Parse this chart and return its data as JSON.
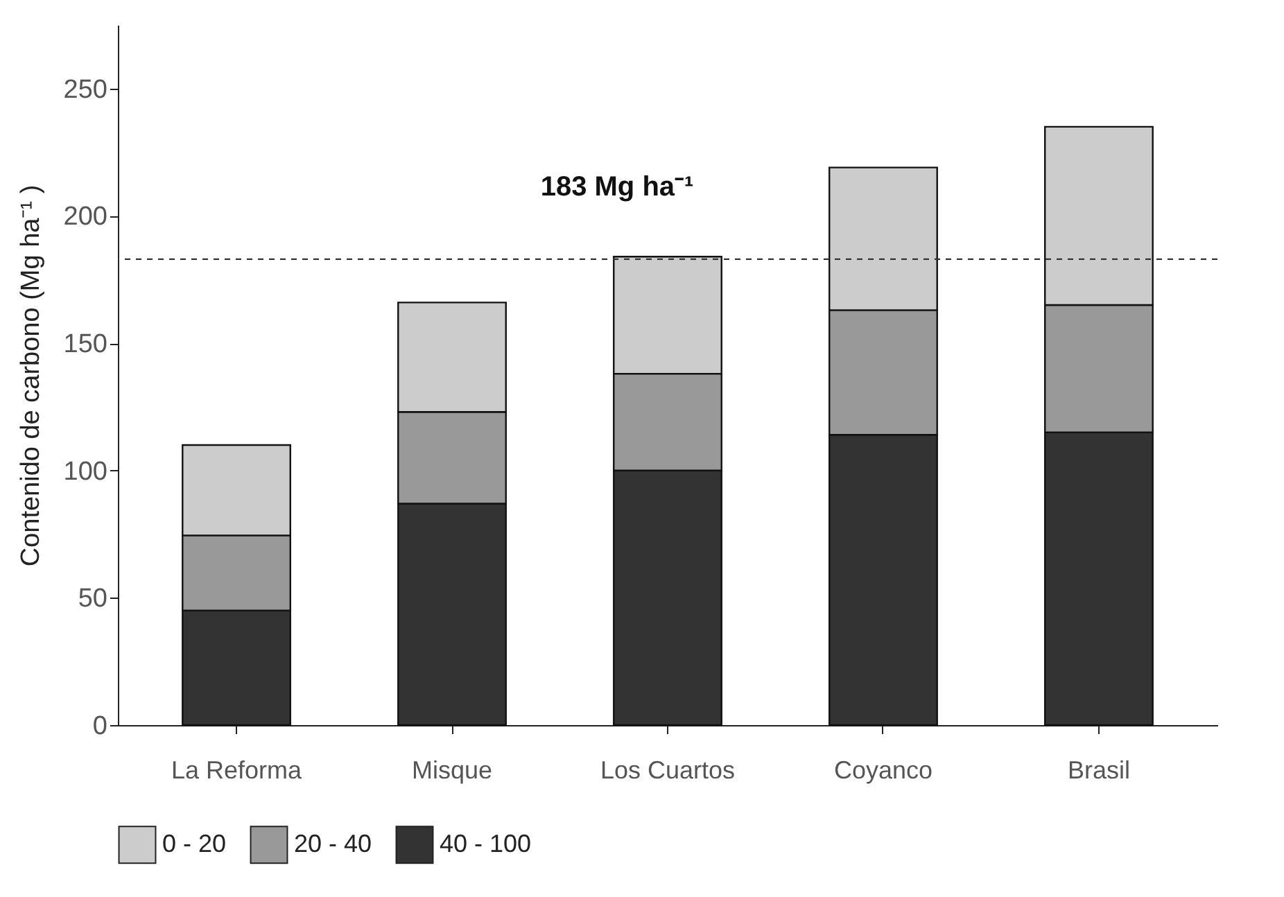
{
  "chart_data": {
    "type": "bar",
    "stacked": true,
    "ylabel": "Contenido de carbono (Mg ha⁻¹ )",
    "categories": [
      "La Reforma",
      "Misque",
      "Los Cuartos",
      "Coyanco",
      "Brasil"
    ],
    "series": [
      {
        "name": "40 - 100",
        "color": "#333333",
        "values": [
          45,
          87,
          100,
          114,
          115
        ]
      },
      {
        "name": "20 - 40",
        "color": "#999999",
        "values": [
          29.5,
          36,
          38,
          49,
          50
        ]
      },
      {
        "name": "0 - 20",
        "color": "#cccccc",
        "values": [
          35.5,
          43,
          46,
          56,
          70
        ]
      }
    ],
    "ylim": [
      0,
      275
    ],
    "yticks": [
      0,
      50,
      100,
      150,
      200,
      250
    ],
    "ref_lines": [
      {
        "axis": "y",
        "value": 183,
        "label": "183 Mg ha⁻¹",
        "line_style": "dashed"
      }
    ],
    "legend": "bottom",
    "grid": false
  }
}
